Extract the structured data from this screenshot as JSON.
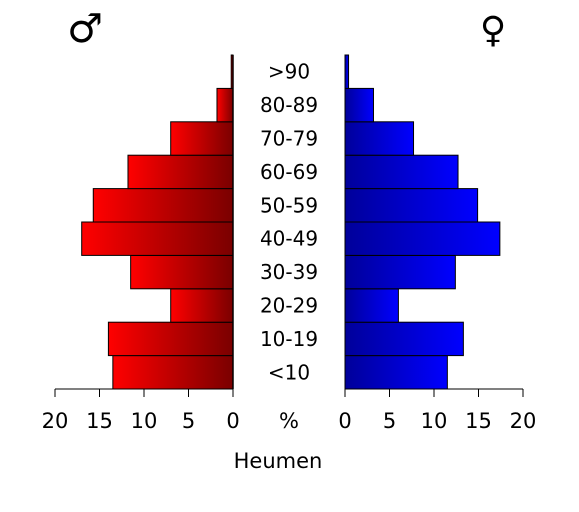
{
  "chart_data": {
    "type": "bar",
    "orientation": "horizontal",
    "subtype": "population-pyramid",
    "title": "Heumen",
    "male_symbol": "♂",
    "female_symbol": "♀",
    "center_axis_label": "%",
    "categories": [
      "<10",
      "10-19",
      "20-29",
      "30-39",
      "40-49",
      "50-59",
      "60-69",
      "70-79",
      "80-89",
      ">90"
    ],
    "series": [
      {
        "side": "left",
        "values": [
          13.5,
          14.0,
          7.0,
          11.5,
          17.0,
          15.7,
          11.8,
          7.0,
          1.8,
          0.2
        ],
        "color_light": "#ff0000",
        "color_dark": "#7a0000"
      },
      {
        "side": "right",
        "values": [
          11.5,
          13.3,
          6.0,
          12.4,
          17.4,
          14.9,
          12.7,
          7.7,
          3.2,
          0.4
        ],
        "color_light": "#0000ff",
        "color_dark": "#00009a"
      }
    ],
    "xlim": [
      0,
      20
    ],
    "left_ticks": [
      "20",
      "15",
      "10",
      "5",
      "0"
    ],
    "right_ticks": [
      "0",
      "5",
      "10",
      "15",
      "20"
    ],
    "tick_values_left": [
      20,
      15,
      10,
      5,
      0
    ],
    "tick_values_right": [
      0,
      5,
      10,
      15,
      20
    ],
    "grid": false,
    "legend": "none"
  }
}
